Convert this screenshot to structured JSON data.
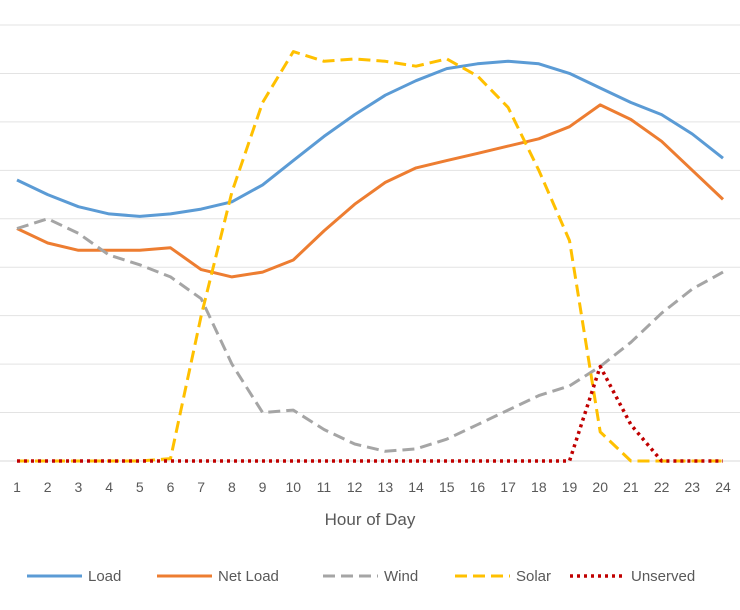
{
  "chart_data": {
    "type": "line",
    "title": "",
    "xlabel": "Hour of Day",
    "ylabel": "",
    "x": [
      "1",
      "2",
      "3",
      "4",
      "5",
      "6",
      "7",
      "8",
      "9",
      "10",
      "11",
      "12",
      "13",
      "14",
      "15",
      "16",
      "17",
      "18",
      "19",
      "20",
      "21",
      "22",
      "23",
      "24"
    ],
    "ylim": [
      0,
      9
    ],
    "grid": true,
    "legend_position": "bottom",
    "series": [
      {
        "name": "Load",
        "color": "#5B9BD5",
        "dash": "solid",
        "values": [
          5.8,
          5.5,
          5.25,
          5.1,
          5.05,
          5.1,
          5.2,
          5.35,
          5.7,
          6.2,
          6.7,
          7.15,
          7.55,
          7.85,
          8.1,
          8.2,
          8.25,
          8.2,
          8.0,
          7.7,
          7.4,
          7.15,
          6.75,
          6.25
        ]
      },
      {
        "name": "Net Load",
        "color": "#ED7D31",
        "dash": "solid",
        "values": [
          4.8,
          4.5,
          4.35,
          4.35,
          4.35,
          4.4,
          3.95,
          3.8,
          3.9,
          4.15,
          4.75,
          5.3,
          5.75,
          6.05,
          6.2,
          6.35,
          6.5,
          6.65,
          6.9,
          7.35,
          7.05,
          6.6,
          6.0,
          5.4
        ]
      },
      {
        "name": "Wind",
        "color": "#A5A5A5",
        "dash": "dash",
        "values": [
          4.8,
          5.0,
          4.7,
          4.25,
          4.05,
          3.8,
          3.35,
          2.0,
          1.0,
          1.05,
          0.65,
          0.35,
          0.2,
          0.25,
          0.45,
          0.75,
          1.05,
          1.35,
          1.55,
          1.95,
          2.45,
          3.05,
          3.55,
          3.9
        ]
      },
      {
        "name": "Solar",
        "color": "#FFC000",
        "dash": "dash",
        "values": [
          0,
          0,
          0,
          0,
          0,
          0.05,
          3.0,
          5.55,
          7.4,
          8.45,
          8.25,
          8.3,
          8.25,
          8.15,
          8.3,
          7.95,
          7.3,
          6.0,
          4.55,
          0.6,
          0.0,
          0,
          0,
          0
        ]
      },
      {
        "name": "Unserved",
        "color": "#C00000",
        "dash": "dot",
        "values": [
          0,
          0,
          0,
          0,
          0,
          0,
          0,
          0,
          0,
          0,
          0,
          0,
          0,
          0,
          0,
          0,
          0,
          0,
          0,
          1.95,
          0.75,
          0.0,
          0,
          0
        ]
      }
    ]
  }
}
